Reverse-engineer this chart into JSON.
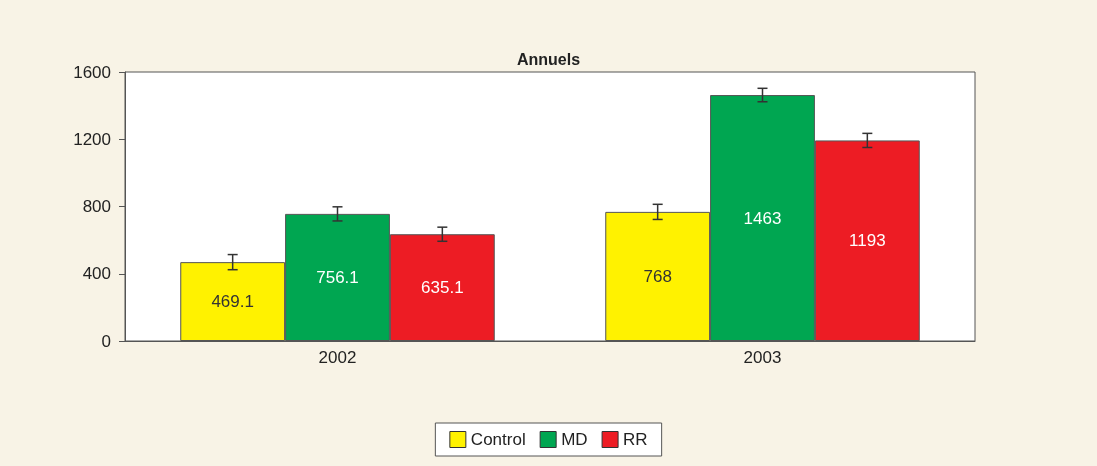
{
  "chart_data": {
    "type": "bar",
    "title": "Annuels",
    "categories": [
      "2002",
      "2003"
    ],
    "series": [
      {
        "name": "Control",
        "color": "#fff200",
        "values": [
          469.1,
          768
        ],
        "errors": [
          45,
          45
        ]
      },
      {
        "name": "MD",
        "color": "#00a651",
        "values": [
          756.1,
          1463
        ],
        "errors": [
          42,
          40
        ]
      },
      {
        "name": "RR",
        "color": "#ed1c24",
        "values": [
          635.1,
          1193
        ],
        "errors": [
          42,
          42
        ]
      }
    ],
    "ylim": [
      0,
      1600
    ],
    "yticks": [
      0,
      400,
      800,
      1200,
      1600
    ],
    "grid": false,
    "legend": "bottom",
    "data_labels": true
  }
}
